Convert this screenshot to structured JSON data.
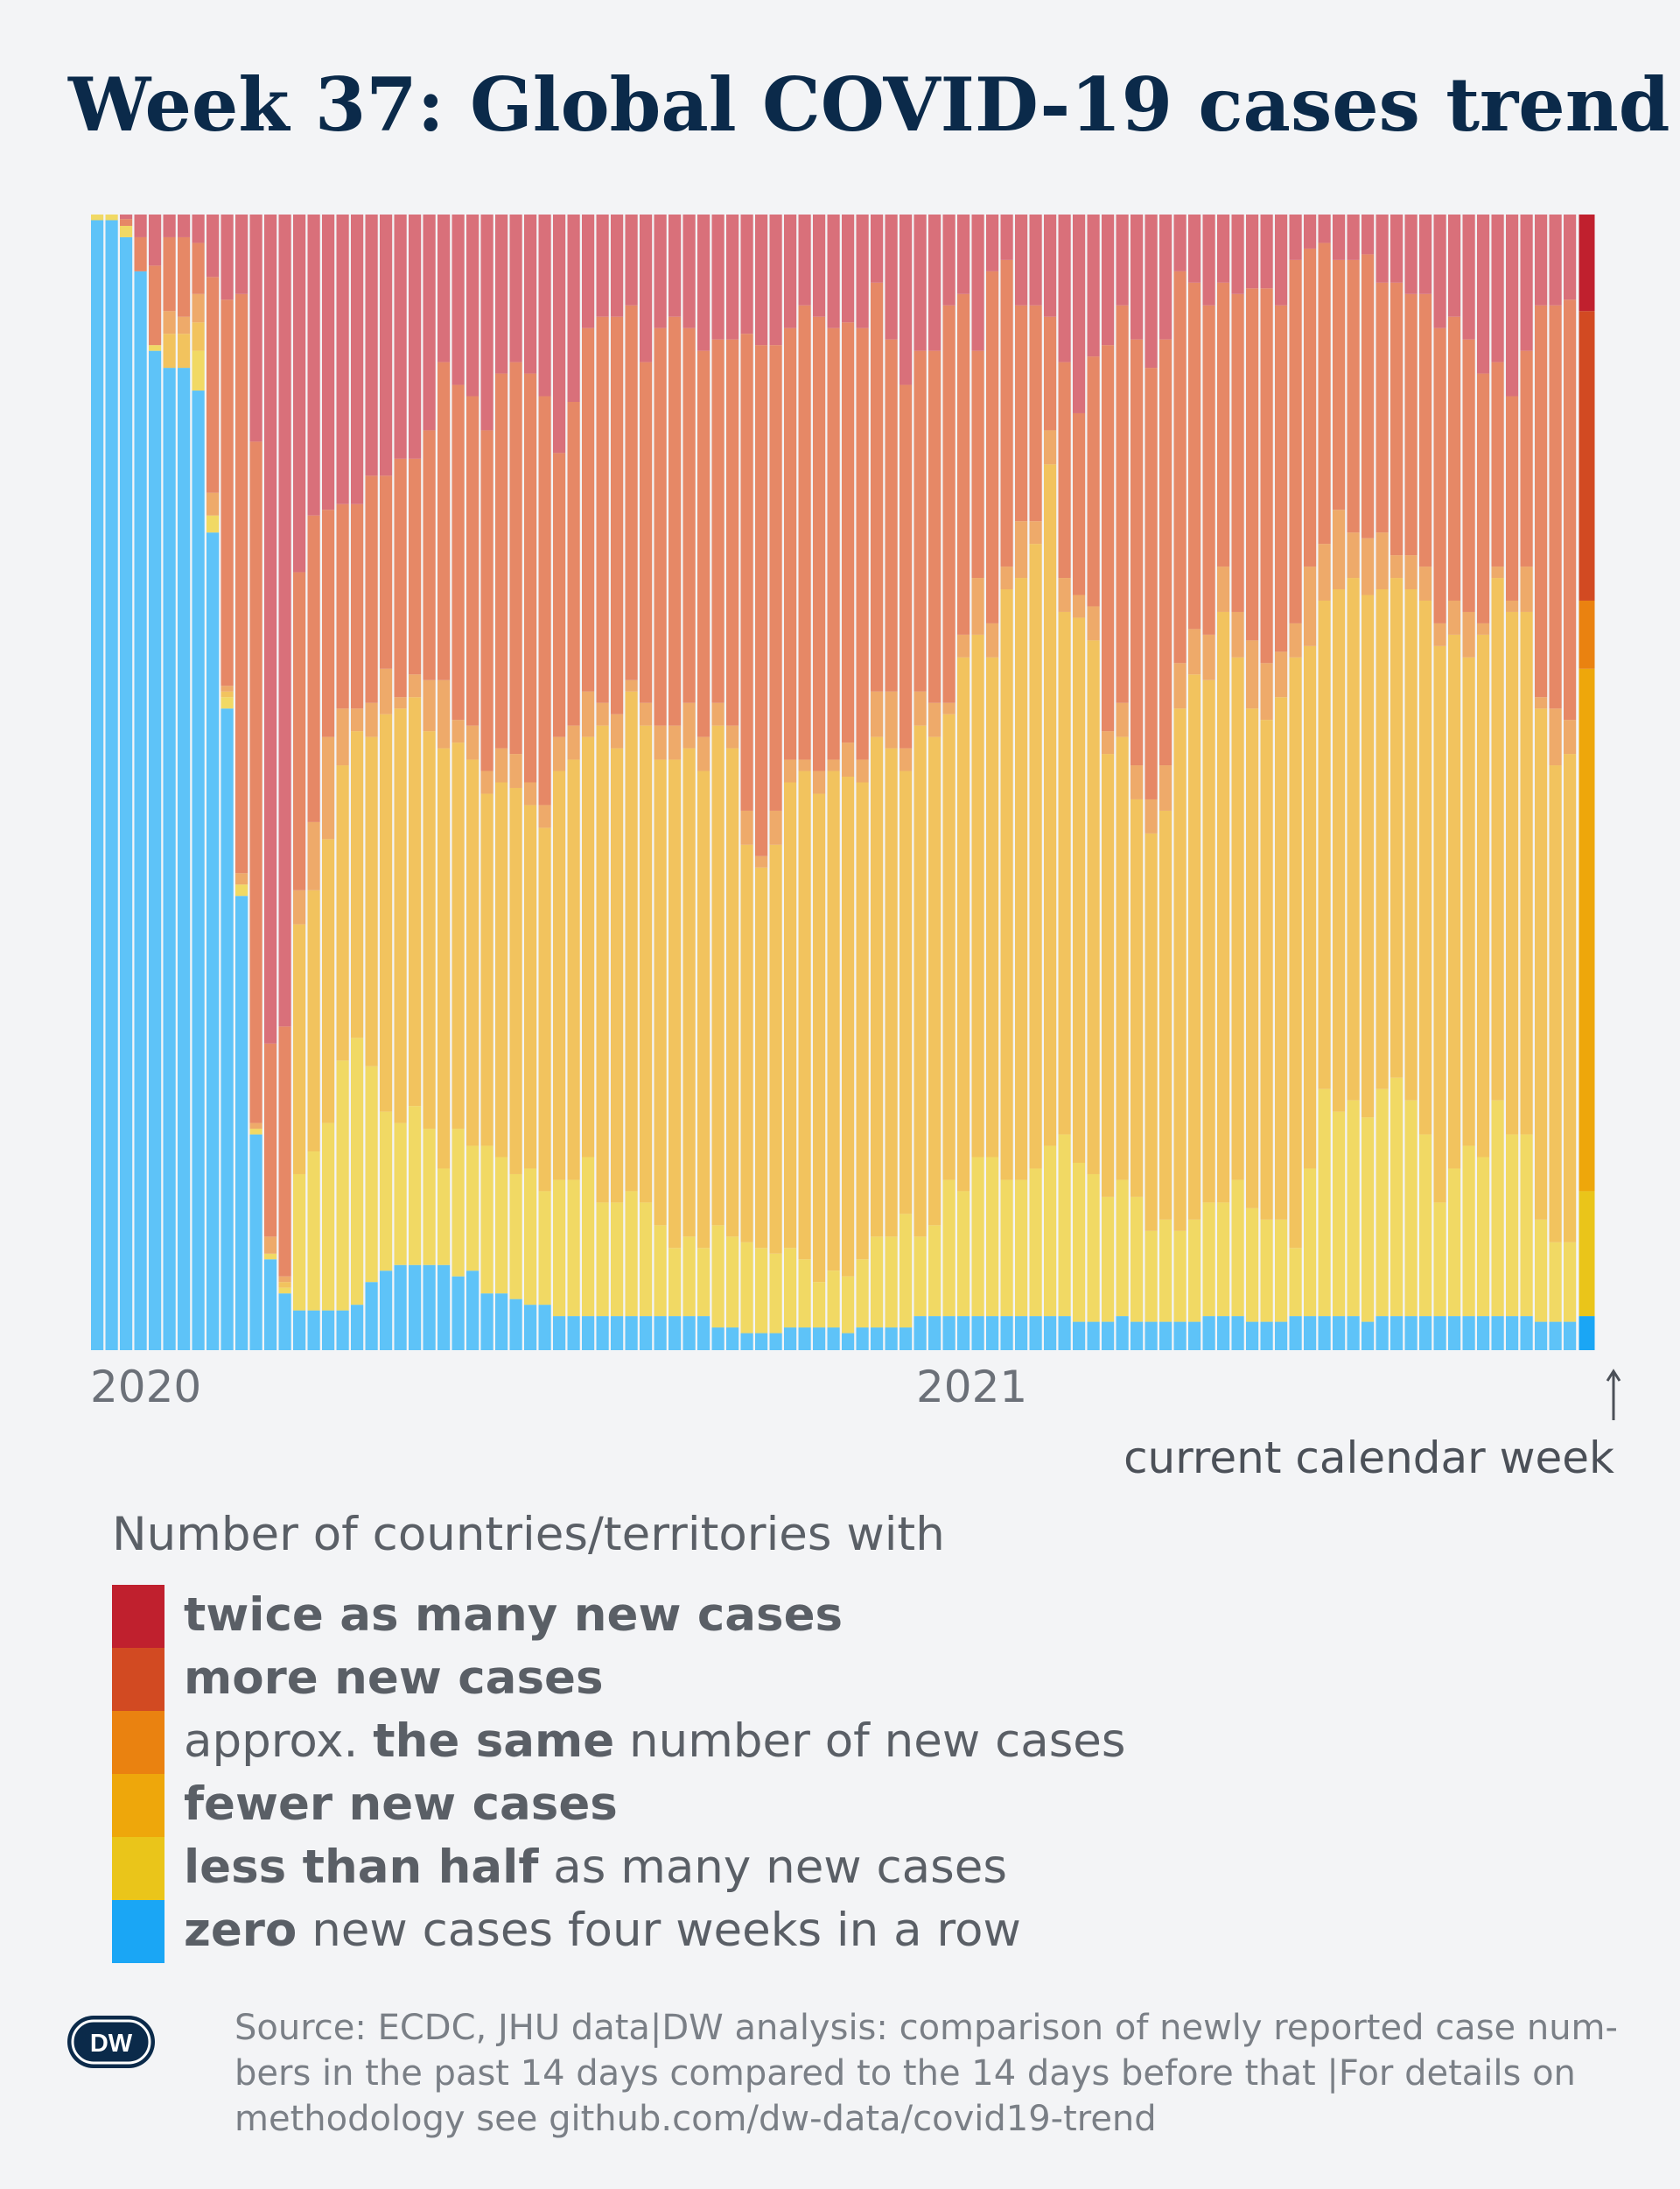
{
  "title": "Week 37: Global COVID-19 cases trend",
  "colors": {
    "twice": "#c0202e",
    "more": "#d24a22",
    "same": "#ea8210",
    "fewer": "#eea70b",
    "half": "#eac51a",
    "zero": "#1aa6f5",
    "bar_twice": "#d9707a",
    "bar_more": "#e68866",
    "bar_same": "#eeaa6a",
    "bar_fewer": "#f2c35e",
    "bar_half": "#f1d964",
    "bar_zero": "#5ec3f8"
  },
  "chart_data": {
    "type": "bar",
    "stacked": true,
    "normalized": true,
    "x_axis_labels": [
      "2020",
      "2021"
    ],
    "annotation": "current calendar week",
    "series_order": [
      "zero",
      "half",
      "fewer",
      "same",
      "more",
      "twice"
    ],
    "values": [
      [
        99.5,
        0.5,
        0,
        0,
        0,
        0
      ],
      [
        99.5,
        0.5,
        0,
        0,
        0,
        0
      ],
      [
        98,
        1,
        0,
        0,
        0.6,
        0.4
      ],
      [
        95,
        0,
        0,
        0,
        3,
        2
      ],
      [
        88,
        0.5,
        0,
        0,
        7,
        4.5
      ],
      [
        86.5,
        0,
        3,
        2,
        6.5,
        2
      ],
      [
        86.5,
        0,
        3,
        1.5,
        7,
        2
      ],
      [
        84.5,
        3.5,
        2.5,
        2.5,
        4.5,
        2.5
      ],
      [
        72,
        1.5,
        0,
        2,
        19,
        5.5
      ],
      [
        56.5,
        1,
        0.5,
        0.5,
        34,
        7.5
      ],
      [
        40,
        1,
        0,
        1,
        51,
        7
      ],
      [
        19,
        0.5,
        0,
        0.5,
        60,
        20
      ],
      [
        8,
        0.5,
        0,
        1.5,
        17,
        73
      ],
      [
        5,
        0.5,
        0.5,
        0.5,
        22,
        71.5
      ],
      [
        3.5,
        12,
        22,
        3,
        28,
        31.5
      ],
      [
        3.5,
        14,
        23,
        6,
        27,
        26.5
      ],
      [
        3.5,
        16.5,
        25,
        9,
        20,
        26
      ],
      [
        3.5,
        22,
        26,
        5,
        18,
        25.5
      ],
      [
        4,
        23.5,
        27,
        2,
        18,
        25.5
      ],
      [
        6,
        19,
        29,
        3,
        20,
        23
      ],
      [
        7,
        14,
        35,
        4,
        17,
        23
      ],
      [
        7.5,
        12.5,
        36.5,
        1,
        21,
        21.5
      ],
      [
        7.5,
        14,
        36,
        2,
        19,
        21.5
      ],
      [
        7.5,
        12,
        35,
        4.5,
        22,
        19
      ],
      [
        7.5,
        8.5,
        37,
        6,
        28,
        13
      ],
      [
        6.5,
        13,
        34,
        2,
        29.5,
        15
      ],
      [
        7,
        11,
        34,
        3,
        29,
        16
      ],
      [
        5,
        13,
        31,
        2,
        30,
        19
      ],
      [
        5,
        12,
        33,
        3,
        33,
        14
      ],
      [
        4.5,
        11,
        34,
        3,
        34.5,
        13
      ],
      [
        4,
        12,
        32,
        2,
        36,
        14
      ],
      [
        4,
        10,
        32,
        2,
        36,
        16
      ],
      [
        3,
        12,
        36,
        3,
        25,
        21
      ],
      [
        3,
        12,
        37,
        3,
        28.5,
        16.5
      ],
      [
        3,
        14,
        37,
        4,
        32,
        10
      ],
      [
        3,
        10,
        42,
        2,
        34,
        9
      ],
      [
        3,
        10,
        40,
        3,
        35,
        9
      ],
      [
        3,
        11,
        44,
        1,
        33,
        8
      ],
      [
        3,
        10,
        42,
        2,
        30,
        13
      ],
      [
        3,
        8,
        41,
        3,
        35,
        10
      ],
      [
        3,
        6,
        43,
        3,
        36,
        9
      ],
      [
        3,
        7,
        43,
        4,
        33,
        10
      ],
      [
        3,
        6,
        42,
        3,
        34,
        12
      ],
      [
        2,
        9,
        44,
        2,
        32,
        11
      ],
      [
        2,
        8,
        43,
        2,
        34,
        11
      ],
      [
        1.5,
        8,
        35,
        3,
        42,
        10.5
      ],
      [
        1.5,
        7.5,
        33.5,
        1,
        45,
        11.5
      ],
      [
        1.5,
        7,
        36,
        3,
        41,
        11.5
      ],
      [
        2,
        7,
        41,
        2,
        38,
        10
      ],
      [
        2,
        6,
        43,
        1,
        40,
        8
      ],
      [
        2,
        4,
        43,
        2,
        40,
        9
      ],
      [
        2,
        5,
        44,
        1,
        38,
        10
      ],
      [
        1.5,
        5,
        44,
        3,
        37,
        9.5
      ],
      [
        2,
        6,
        42,
        2,
        38,
        10
      ],
      [
        2,
        8,
        44,
        4,
        36,
        6
      ],
      [
        2,
        8,
        43,
        5,
        31,
        11
      ],
      [
        2,
        10,
        39,
        2,
        32,
        15
      ],
      [
        3,
        7,
        45,
        3,
        30,
        12
      ],
      [
        3,
        8,
        43,
        3,
        31,
        12
      ],
      [
        3,
        12,
        41,
        1,
        35,
        8
      ],
      [
        3,
        11,
        47,
        2,
        30,
        7
      ],
      [
        3,
        14,
        46,
        5,
        20,
        12
      ],
      [
        3,
        14,
        44,
        3,
        31,
        5
      ],
      [
        3,
        12,
        52,
        2,
        27,
        4
      ],
      [
        3,
        12,
        53,
        5,
        19,
        8
      ],
      [
        3,
        13,
        55,
        2,
        19,
        8
      ],
      [
        3,
        15,
        60,
        3,
        10,
        9
      ],
      [
        3,
        16,
        46,
        3,
        19,
        13
      ],
      [
        2.5,
        14,
        48,
        2,
        16,
        17.5
      ],
      [
        2.5,
        13,
        47,
        3,
        22,
        12.5
      ],
      [
        2.5,
        11,
        39,
        2,
        34,
        11.5
      ],
      [
        3,
        12,
        39,
        3,
        35,
        8
      ],
      [
        2.5,
        11,
        35,
        3,
        37.5,
        11
      ],
      [
        2.5,
        8,
        35,
        3,
        38,
        13.5
      ],
      [
        2.5,
        9,
        36,
        4,
        37.5,
        11
      ],
      [
        2.5,
        8,
        46,
        4,
        34.5,
        5
      ],
      [
        2.5,
        9,
        48,
        4,
        30.5,
        6
      ],
      [
        3,
        10,
        46,
        4,
        29,
        8
      ],
      [
        3,
        10,
        52,
        4,
        25,
        6
      ],
      [
        3,
        12,
        46,
        4,
        28,
        7
      ],
      [
        2.5,
        10,
        44,
        6,
        31,
        6.5
      ],
      [
        2.5,
        9,
        44,
        5,
        33,
        6.5
      ],
      [
        2.5,
        9,
        46,
        4,
        30.5,
        8
      ],
      [
        3,
        6,
        52,
        3,
        32,
        4
      ],
      [
        3,
        13,
        46,
        7,
        28,
        3
      ],
      [
        3,
        20,
        43,
        5,
        26.5,
        2.5
      ],
      [
        3,
        18,
        46,
        7,
        22,
        4
      ],
      [
        3,
        19,
        46,
        4,
        24,
        4
      ],
      [
        2.5,
        18,
        46,
        5,
        25,
        3.5
      ],
      [
        3,
        20,
        44,
        5,
        22,
        6
      ],
      [
        3,
        21,
        44,
        2,
        24,
        6
      ],
      [
        3,
        19,
        45,
        3,
        23,
        10
      ],
      [
        3,
        16,
        47,
        3,
        24,
        7
      ],
      [
        3,
        10,
        49,
        2,
        26,
        10
      ],
      [
        3,
        13,
        47,
        3,
        25,
        9
      ],
      [
        3,
        15,
        43,
        4,
        24,
        11
      ],
      [
        3,
        14,
        46,
        1,
        22,
        14
      ],
      [
        3,
        19,
        46,
        1,
        18,
        13
      ],
      [
        3,
        16,
        46,
        1,
        18,
        16
      ],
      [
        3,
        16,
        46,
        4,
        19,
        12
      ],
      [
        2.5,
        9,
        45,
        1,
        34.5,
        8
      ],
      [
        2.5,
        7,
        42,
        5,
        35.5,
        8
      ],
      [
        2.5,
        7,
        43,
        3,
        37,
        7.5
      ]
    ],
    "current_week_values": [
      3,
      11,
      46,
      6,
      25.5,
      8.5
    ]
  },
  "legend": {
    "title": "Number of countries/territories with",
    "items": [
      {
        "key": "twice",
        "parts": [
          {
            "b": true,
            "t": "twice as many new cases"
          }
        ]
      },
      {
        "key": "more",
        "parts": [
          {
            "b": true,
            "t": "more new cases"
          }
        ]
      },
      {
        "key": "same",
        "parts": [
          {
            "b": false,
            "t": "approx. "
          },
          {
            "b": true,
            "t": "the same"
          },
          {
            "b": false,
            "t": " number of new cases"
          }
        ]
      },
      {
        "key": "fewer",
        "parts": [
          {
            "b": true,
            "t": "fewer new cases"
          }
        ]
      },
      {
        "key": "half",
        "parts": [
          {
            "b": true,
            "t": "less than half"
          },
          {
            "b": false,
            "t": " as many new cases"
          }
        ]
      },
      {
        "key": "zero",
        "parts": [
          {
            "b": true,
            "t": "zero"
          },
          {
            "b": false,
            "t": " new cases four weeks in a row"
          }
        ]
      }
    ]
  },
  "logo": "DW",
  "source": "Source: ECDC, JHU data|DW analysis: comparison of newly reported case num-bers in the past 14 days compared to the 14 days before that |For details on methodology see github.com/dw-data/covid19-trend"
}
